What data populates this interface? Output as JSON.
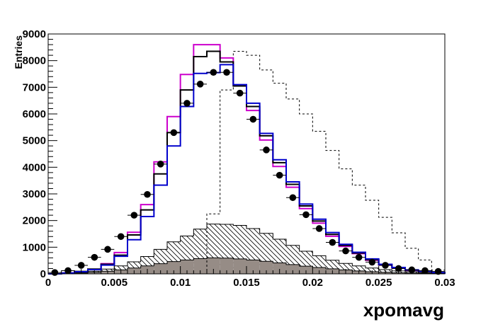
{
  "chart_data": {
    "type": "histogram",
    "xlabel": "xpomavg",
    "ylabel": "Entries",
    "xlim": [
      0,
      0.03
    ],
    "ylim": [
      0,
      9000
    ],
    "x_tick_labels": [
      "0",
      "0.005",
      "0.01",
      "0.015",
      "0.02",
      "0.025",
      "0.03"
    ],
    "y_tick_labels": [
      "0",
      "1000",
      "2000",
      "3000",
      "4000",
      "5000",
      "6000",
      "7000",
      "8000",
      "9000"
    ],
    "bin_edges": [
      0,
      0.001,
      0.002,
      0.003,
      0.004,
      0.005,
      0.006,
      0.007,
      0.008,
      0.009,
      0.01,
      0.011,
      0.012,
      0.013,
      0.014,
      0.015,
      0.016,
      0.017,
      0.018,
      0.019,
      0.02,
      0.021,
      0.022,
      0.023,
      0.024,
      0.025,
      0.026,
      0.027,
      0.028,
      0.029,
      0.03
    ],
    "series": [
      {
        "style": "points",
        "color": "#000000",
        "values": [
          50,
          120,
          320,
          620,
          920,
          1400,
          2200,
          2980,
          4120,
          5300,
          6400,
          7120,
          7560,
          7560,
          6780,
          5800,
          4650,
          3700,
          2860,
          2220,
          1700,
          1180,
          860,
          620,
          440,
          320,
          200,
          150,
          120,
          90
        ]
      },
      {
        "style": "step",
        "color": "#cc00cc",
        "values": [
          0,
          30,
          80,
          170,
          380,
          800,
          1560,
          2600,
          4200,
          5900,
          7480,
          8600,
          8600,
          8100,
          7080,
          6130,
          5020,
          4030,
          3250,
          2450,
          1900,
          1410,
          1030,
          760,
          510,
          330,
          220,
          130,
          90,
          40
        ]
      },
      {
        "style": "step",
        "color": "#000000",
        "values": [
          0,
          30,
          90,
          180,
          360,
          700,
          1460,
          2400,
          3750,
          5300,
          6900,
          8150,
          8350,
          7950,
          7050,
          6280,
          5180,
          4170,
          3360,
          2550,
          1980,
          1480,
          1070,
          780,
          530,
          340,
          230,
          140,
          90,
          40
        ]
      },
      {
        "style": "step",
        "color": "#0000cc",
        "values": [
          0,
          30,
          80,
          160,
          330,
          660,
          1280,
          2150,
          3330,
          4800,
          6280,
          7520,
          7550,
          7850,
          7100,
          6400,
          5270,
          4280,
          3450,
          2620,
          2050,
          1550,
          1110,
          810,
          560,
          360,
          240,
          150,
          100,
          50
        ]
      },
      {
        "style": "dashed-step",
        "color": "#000000",
        "values": [
          0,
          0,
          0,
          0,
          0,
          0,
          0,
          0,
          0,
          0,
          0,
          0,
          2250,
          6900,
          8350,
          8200,
          7650,
          7150,
          6560,
          6000,
          5350,
          4630,
          3940,
          3330,
          2760,
          2120,
          1540,
          960,
          520,
          140
        ]
      },
      {
        "style": "hatched",
        "color": "#000000",
        "values": [
          0,
          20,
          50,
          100,
          180,
          300,
          450,
          650,
          920,
          1200,
          1420,
          1680,
          1870,
          1860,
          1820,
          1700,
          1520,
          1300,
          1070,
          850,
          680,
          510,
          390,
          300,
          220,
          160,
          110,
          80,
          50,
          30
        ]
      },
      {
        "style": "filled",
        "color": "#968c86",
        "values": [
          0,
          10,
          30,
          60,
          100,
          150,
          220,
          300,
          380,
          460,
          520,
          570,
          600,
          590,
          560,
          520,
          470,
          410,
          350,
          290,
          240,
          190,
          150,
          110,
          80,
          60,
          40,
          30,
          20,
          10
        ]
      }
    ]
  }
}
